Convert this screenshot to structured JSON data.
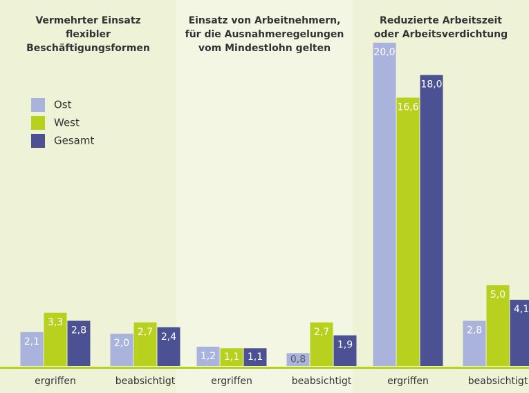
{
  "chart_data": [
    {
      "type": "bar",
      "title": [
        "Vermehrter Einsatz",
        "flexibler",
        "Beschäftigungsformen"
      ],
      "categories": [
        "ergriffen",
        "beabsichtigt"
      ],
      "series": [
        {
          "name": "Ost",
          "color": "#aab3dc",
          "values": [
            2.1,
            2.0
          ],
          "value_labels": [
            "2,1",
            "2,0"
          ]
        },
        {
          "name": "West",
          "color": "#b7d11e",
          "values": [
            3.3,
            2.7
          ],
          "value_labels": [
            "3,3",
            "2,7"
          ]
        },
        {
          "name": "Gesamt",
          "color": "#4b5192",
          "values": [
            2.8,
            2.4
          ],
          "value_labels": [
            "2,8",
            "2,4"
          ]
        }
      ],
      "ylim": [
        0,
        22
      ]
    },
    {
      "type": "bar",
      "title": [
        "Einsatz von Arbeitnehmern,",
        "für die Ausnahmeregelungen",
        "vom Mindestlohn gelten"
      ],
      "categories": [
        "ergriffen",
        "beabsichtigt"
      ],
      "series": [
        {
          "color": "#aab3dc",
          "values": [
            1.2,
            0.8
          ],
          "value_labels": [
            "1,2",
            "0,8"
          ]
        },
        {
          "color": "#b7d11e",
          "values": [
            1.1,
            2.7
          ],
          "value_labels": [
            "1,1",
            "2,7"
          ]
        },
        {
          "color": "#4b5192",
          "values": [
            1.1,
            1.9
          ],
          "value_labels": [
            "1,1",
            "1,9"
          ]
        }
      ],
      "ylim": [
        0,
        22
      ]
    },
    {
      "type": "bar",
      "title": [
        "Reduzierte Arbeitszeit",
        "oder Arbeitsverdichtung"
      ],
      "categories": [
        "ergriffen",
        "beabsichtigt"
      ],
      "series": [
        {
          "color": "#aab3dc",
          "values": [
            20.0,
            2.8
          ],
          "value_labels": [
            "20,0",
            "2,8"
          ]
        },
        {
          "color": "#b7d11e",
          "values": [
            16.6,
            5.0
          ],
          "value_labels": [
            "16,6",
            "5,0"
          ]
        },
        {
          "color": "#4b5192",
          "values": [
            18.0,
            4.1
          ],
          "value_labels": [
            "18,0",
            "4,1"
          ]
        }
      ],
      "ylim": [
        0,
        22
      ]
    }
  ]
}
